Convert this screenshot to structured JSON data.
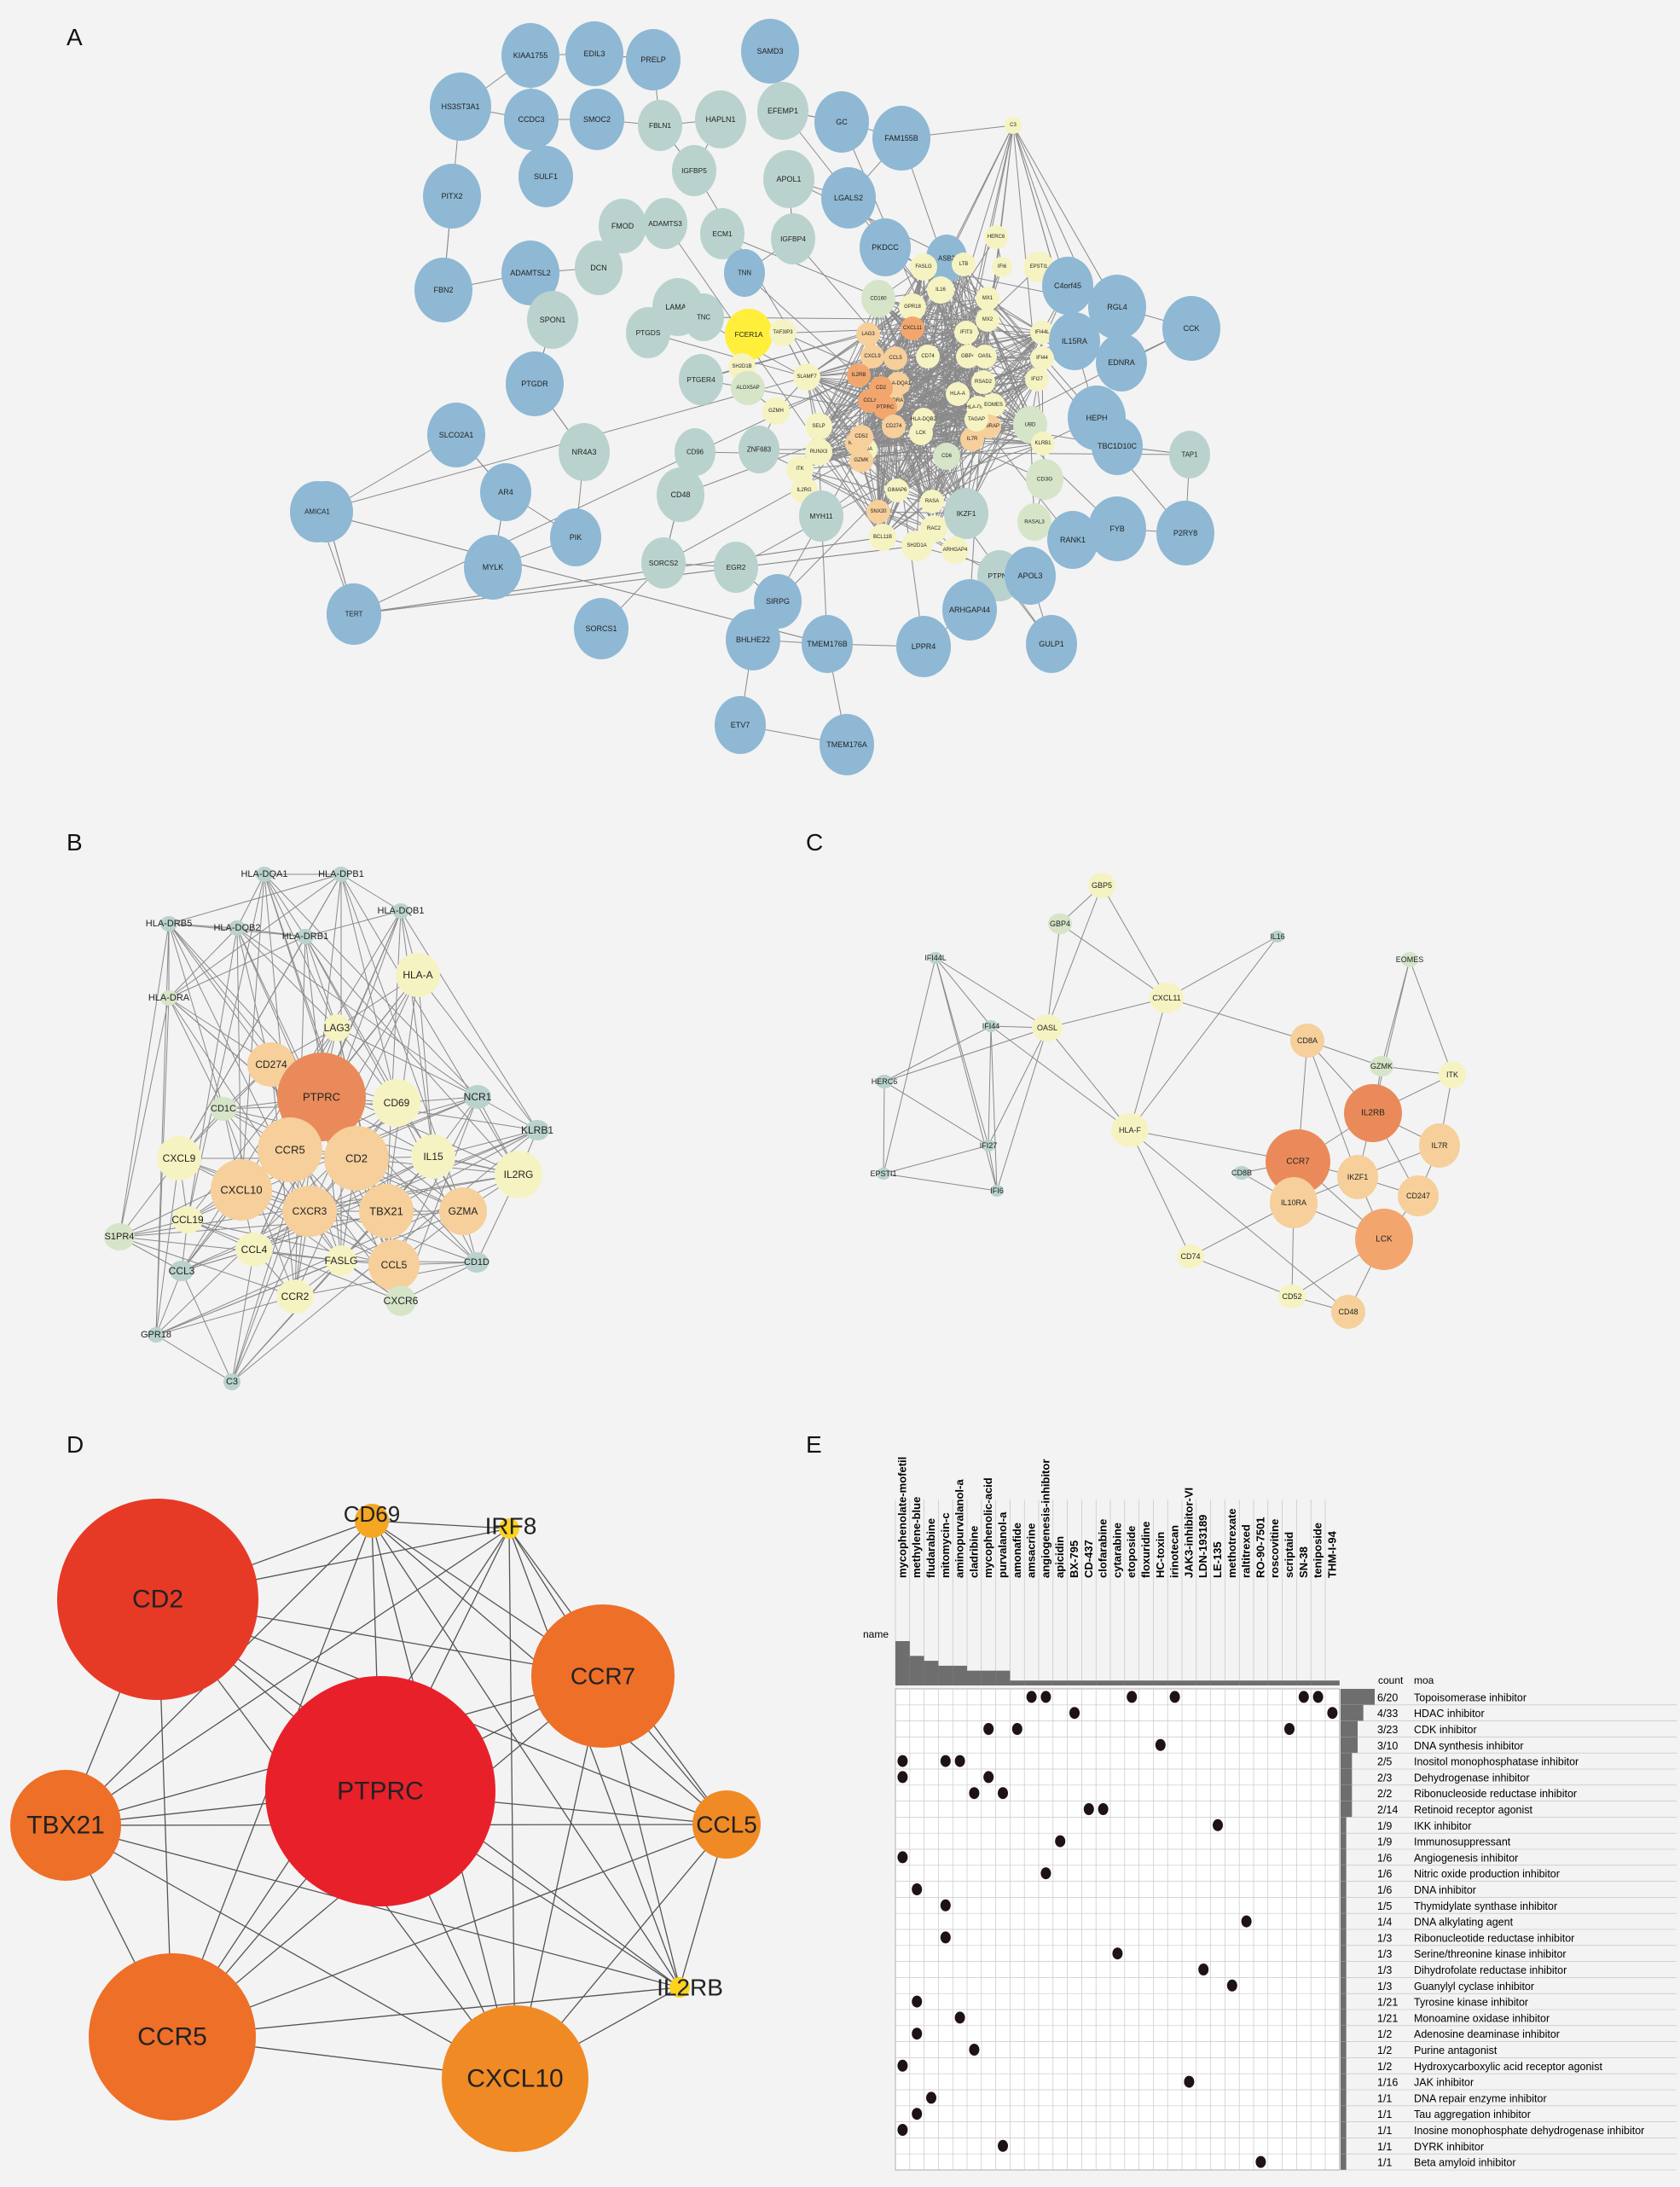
{
  "panels": {
    "A": {
      "letter": "A"
    },
    "B": {
      "letter": "B"
    },
    "C": {
      "letter": "C"
    },
    "D": {
      "letter": "D"
    },
    "E": {
      "letter": "E"
    }
  },
  "colors": {
    "blue": "#8eb8d4",
    "sage": "#b9d2cd",
    "palegreen": "#d6e4c8",
    "cream": "#f6f3c2",
    "yellow": "#ffef3a",
    "peach": "#f6cf9b",
    "orange": "#f2a66e",
    "deep": "#ea8a5a",
    "d_red": "#e8202a",
    "d_red2": "#e63a26",
    "d_orange": "#ee6f28",
    "d_orange2": "#f08a24",
    "d_gold": "#f5a623",
    "d_yellow": "#ffd21f"
  },
  "networkA": {
    "labels": [
      "KIAA1755",
      "EDIL3",
      "PRELP",
      "SAMD3",
      "HS3ST3A1",
      "CCDC3",
      "SMOC2",
      "HAPLN1",
      "EFEMP1",
      "GC",
      "FAM155B",
      "C3",
      "FBLN1",
      "IGFBP5",
      "PITX2",
      "SULF1",
      "FMOD",
      "ADAMTS3",
      "APOL1",
      "LGALS2",
      "DCN",
      "ECM1",
      "IGFBP4",
      "PKDCC",
      "ASB2",
      "HERC6",
      "FBN2",
      "ADAMTSL2",
      "LAMA2",
      "TNN",
      "FASLG",
      "LTB",
      "IFI6",
      "EPSTI1",
      "C4orf45",
      "RGL4",
      "SPON1",
      "TNC",
      "FCER1A",
      "CD160",
      "GPR18",
      "IL16",
      "MX1",
      "MX2",
      "IFI44L",
      "IL15RA",
      "CCK",
      "PTGDS",
      "TAF3IP3",
      "LAG3",
      "CXCL11",
      "IFIT3",
      "IFI44",
      "EDNRA",
      "PTGER4",
      "SH2D1B",
      "CXCL9",
      "CCL5",
      "CD74",
      "GBP4",
      "OASL",
      "IFI27",
      "PTGDR",
      "ALOX5AP",
      "SLAMF7",
      "IL2RB",
      "HLA-DQA1",
      "RSAD2",
      "HLA-DRA",
      "UBD",
      "HEPH",
      "SLCO2A1",
      "NR4A3",
      "GZMH",
      "CCL3",
      "PTPRC",
      "HLA-A",
      "HLA-DPB1",
      "TBC1D10C",
      "TAP1",
      "AR4",
      "CD96",
      "ZNF683",
      "RUNX3",
      "EOMES",
      "CD2",
      "CD274",
      "HLA-DQB2",
      "IL7R",
      "CD6",
      "IL18RAP",
      "KLRB1",
      "CD8A",
      "CD3G",
      "CD48",
      "KIF25A",
      "TAGAP",
      "IL2RG",
      "GZMK",
      "LCK",
      "RAC2",
      "RASA",
      "ITK",
      "SELP",
      "CD52",
      "FYB",
      "P2RY8",
      "PIK",
      "MYH11",
      "SNX20",
      "GIMAP6",
      "IKZF1",
      "RASAL3",
      "RANK1",
      "MYLK",
      "SORCS2",
      "EGR2",
      "BCL11B",
      "SH2D1A",
      "ARHGAP4",
      "PTPN7",
      "APOL3",
      "CD51",
      "TYMP",
      "SIRPG",
      "AMICA1",
      "TERT",
      "ARHGAP44",
      "GULP1",
      "SORCS1",
      "BHLHE22",
      "TMEM176B",
      "LPPR4",
      "ETV7",
      "TMEM176A"
    ]
  },
  "networkB": {
    "labels": [
      "HLA-DQA1",
      "HLA-DPB1",
      "HLA-DQB1",
      "HLA-DRB5",
      "HLA-DQB2",
      "HLA-DRB1",
      "HLA-A",
      "HLA-DRA",
      "LAG3",
      "CD274",
      "PTPRC",
      "CD69",
      "NCR1",
      "CD1C",
      "KLRB1",
      "CXCL9",
      "CCR5",
      "CD2",
      "IL15",
      "IL2RG",
      "CXCL10",
      "CXCR3",
      "TBX21",
      "GZMA",
      "CCL19",
      "S1PR4",
      "CCL4",
      "FASLG",
      "CCL5",
      "CD1D",
      "CCL3",
      "CCR2",
      "CXCR6",
      "GPR18",
      "C3"
    ]
  },
  "networkC": {
    "labels": [
      "GBP5",
      "GBP4",
      "IFI44L",
      "EOMES",
      "CXCL11",
      "IL16",
      "OASL",
      "IFI44",
      "HERC6",
      "CD8A",
      "GZMK",
      "ITK",
      "IL2RB",
      "HLA-F",
      "CCR7",
      "IFI27",
      "CD8B",
      "IL7R",
      "EPSTI1",
      "IKZF1",
      "CD247",
      "IFI6",
      "IL10RA",
      "LCK",
      "CD74",
      "CD52",
      "CD48"
    ]
  },
  "networkD": {
    "labels": [
      "CD69",
      "IRF8",
      "CD2",
      "CCR7",
      "PTPRC",
      "TBX21",
      "CCL5",
      "IL2RB",
      "CCR5",
      "CXCL10"
    ]
  },
  "matrixE": {
    "name_label": "name",
    "count_header": "count",
    "moa_header": "moa",
    "drugs": [
      "mycophenolate-mofetil",
      "methylene-blue",
      "fludarabine",
      "mitomycin-c",
      "aminopurvalanol-a",
      "cladribine",
      "mycophenolic-acid",
      "purvalanol-a",
      "amonafide",
      "amsacrine",
      "angiogenesis-inhibitor",
      "apicidin",
      "BX-795",
      "CD-437",
      "clofarabine",
      "cytarabine",
      "etoposide",
      "floxuridine",
      "HC-toxin",
      "irinotecan",
      "JAK3-inhibitor-VI",
      "LDN-193189",
      "LE-135",
      "methotrexate",
      "raltitrexed",
      "RO-90-7501",
      "roscovitine",
      "scriptaid",
      "SN-38",
      "teniposide",
      "THM-I-94"
    ],
    "drug_bar": [
      9,
      6,
      5,
      4,
      4,
      3,
      3,
      3,
      1,
      1,
      1,
      1,
      1,
      1,
      1,
      1,
      1,
      1,
      1,
      1,
      1,
      1,
      1,
      1,
      1,
      1,
      1,
      1,
      1,
      1,
      1
    ],
    "rows": [
      {
        "count": "6/20",
        "moa": "Topoisomerase inhibitor",
        "bar": 6
      },
      {
        "count": "4/33",
        "moa": "HDAC inhibitor",
        "bar": 4
      },
      {
        "count": "3/23",
        "moa": "CDK inhibitor",
        "bar": 3
      },
      {
        "count": "3/10",
        "moa": "DNA synthesis inhibitor",
        "bar": 3
      },
      {
        "count": "2/5",
        "moa": "Inositol monophosphatase inhibitor",
        "bar": 2
      },
      {
        "count": "2/3",
        "moa": "Dehydrogenase inhibitor",
        "bar": 2
      },
      {
        "count": "2/2",
        "moa": "Ribonucleoside reductase inhibitor",
        "bar": 2
      },
      {
        "count": "2/14",
        "moa": "Retinoid receptor agonist",
        "bar": 2
      },
      {
        "count": "1/9",
        "moa": "IKK inhibitor",
        "bar": 1
      },
      {
        "count": "1/9",
        "moa": "Immunosuppressant",
        "bar": 1
      },
      {
        "count": "1/6",
        "moa": "Angiogenesis inhibitor",
        "bar": 1
      },
      {
        "count": "1/6",
        "moa": "Nitric oxide production inhibitor",
        "bar": 1
      },
      {
        "count": "1/6",
        "moa": "DNA inhibitor",
        "bar": 1
      },
      {
        "count": "1/5",
        "moa": "Thymidylate synthase inhibitor",
        "bar": 1
      },
      {
        "count": "1/4",
        "moa": "DNA alkylating agent",
        "bar": 1
      },
      {
        "count": "1/3",
        "moa": "Ribonucleotide reductase inhibitor",
        "bar": 1
      },
      {
        "count": "1/3",
        "moa": "Serine/threonine kinase inhibitor",
        "bar": 1
      },
      {
        "count": "1/3",
        "moa": "Dihydrofolate reductase inhibitor",
        "bar": 1
      },
      {
        "count": "1/3",
        "moa": "Guanylyl cyclase inhibitor",
        "bar": 1
      },
      {
        "count": "1/21",
        "moa": "Tyrosine kinase inhibitor",
        "bar": 1
      },
      {
        "count": "1/21",
        "moa": "Monoamine oxidase inhibitor",
        "bar": 1
      },
      {
        "count": "1/2",
        "moa": "Adenosine deaminase inhibitor",
        "bar": 1
      },
      {
        "count": "1/2",
        "moa": "Purine antagonist",
        "bar": 1
      },
      {
        "count": "1/2",
        "moa": "Hydroxycarboxylic acid receptor agonist",
        "bar": 1
      },
      {
        "count": "1/16",
        "moa": "JAK inhibitor",
        "bar": 1
      },
      {
        "count": "1/1",
        "moa": "DNA repair enzyme inhibitor",
        "bar": 1
      },
      {
        "count": "1/1",
        "moa": "Tau aggregation inhibitor",
        "bar": 1
      },
      {
        "count": "1/1",
        "moa": "Inosine monophosphate dehydrogenase inhibitor",
        "bar": 1
      },
      {
        "count": "1/1",
        "moa": "DYRK inhibitor",
        "bar": 1
      },
      {
        "count": "1/1",
        "moa": "Beta amyloid inhibitor",
        "bar": 1
      }
    ],
    "dots": [
      [
        0,
        9
      ],
      [
        0,
        10
      ],
      [
        0,
        16
      ],
      [
        0,
        19
      ],
      [
        0,
        28
      ],
      [
        0,
        29
      ],
      [
        1,
        12
      ],
      [
        1,
        30
      ],
      [
        2,
        6
      ],
      [
        2,
        8
      ],
      [
        2,
        27
      ],
      [
        3,
        18
      ],
      [
        4,
        0
      ],
      [
        4,
        3
      ],
      [
        4,
        4
      ],
      [
        5,
        0
      ],
      [
        5,
        6
      ],
      [
        6,
        5
      ],
      [
        6,
        7
      ],
      [
        7,
        13
      ],
      [
        7,
        14
      ],
      [
        8,
        22
      ],
      [
        9,
        11
      ],
      [
        10,
        0
      ],
      [
        11,
        10
      ],
      [
        12,
        1
      ],
      [
        13,
        3
      ],
      [
        14,
        24
      ],
      [
        15,
        3
      ],
      [
        16,
        15
      ],
      [
        17,
        21
      ],
      [
        18,
        23
      ],
      [
        19,
        1
      ],
      [
        20,
        4
      ],
      [
        21,
        1
      ],
      [
        22,
        5
      ],
      [
        23,
        0
      ],
      [
        24,
        20
      ],
      [
        25,
        2
      ],
      [
        26,
        1
      ],
      [
        27,
        0
      ],
      [
        28,
        7
      ],
      [
        29,
        25
      ]
    ]
  }
}
